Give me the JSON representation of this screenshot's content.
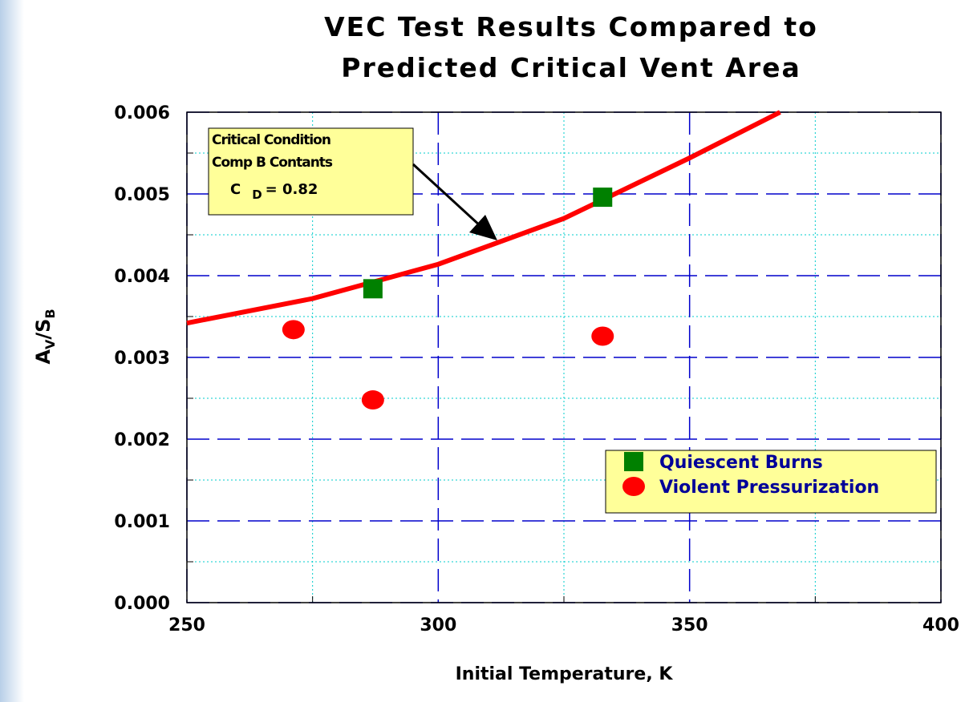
{
  "chart_data": {
    "type": "scatter",
    "title": [
      "VEC Test Results Compared to",
      "Predicted Critical Vent Area"
    ],
    "x_label": "Initial Temperature, K",
    "y_label": [
      "A",
      "V",
      "/S",
      "B"
    ],
    "xlim": [
      250,
      400
    ],
    "xticks": [
      250,
      300,
      350,
      400
    ],
    "x_minor_ticks": [
      275,
      325,
      375
    ],
    "ylim": [
      0,
      0.006
    ],
    "yticks": [
      {
        "value": 0,
        "label": "0.000"
      },
      0.001,
      0.002,
      0.003,
      0.004,
      0.005,
      0.006
    ],
    "y_minor_ticks": [
      0.0005,
      0.0015,
      0.0025,
      0.0035,
      0.0045,
      0.0055
    ],
    "grid": true,
    "legend_position": "lower right",
    "curve": {
      "color": "#ff0000",
      "x": [
        250,
        275,
        300,
        325,
        350,
        368
      ],
      "values": [
        0.00342,
        0.00372,
        0.00414,
        0.0047,
        0.00544,
        0.006
      ]
    },
    "series": [
      {
        "name": "Quiescent Burns",
        "color": "#008000",
        "marker": "square",
        "x": [
          287,
          332.7
        ],
        "values": [
          0.00384,
          0.00496
        ]
      },
      {
        "name": "Violent Pressurization",
        "color": "#ff0000",
        "marker": "circle",
        "x": [
          271.2,
          287,
          332.7
        ],
        "values": [
          0.00334,
          0.00248,
          0.00326
        ]
      }
    ],
    "annotation": {
      "lines": [
        "Critical Condition",
        "Comp B Contants"
      ],
      "cd": [
        "C",
        "D",
        "= 0.82"
      ]
    }
  }
}
